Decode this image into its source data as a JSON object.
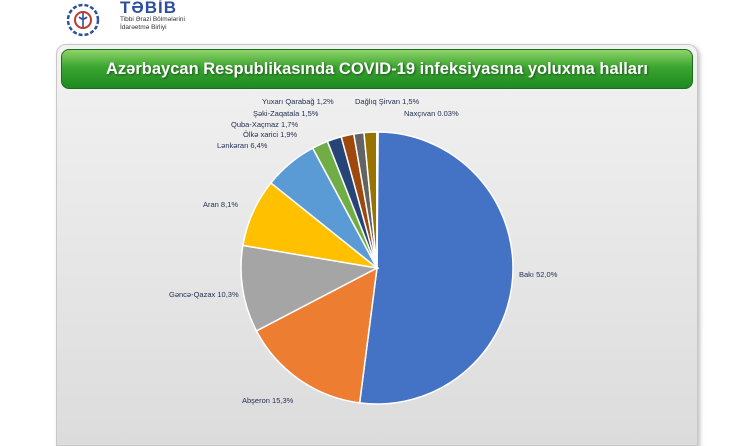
{
  "logo": {
    "title": "TƏBİB",
    "subtitle_line1": "Tibbi Ərazi Bölmələrini",
    "subtitle_line2": "İdarəetmə Birliyi"
  },
  "chart_data": {
    "type": "pie",
    "title": "Azərbaycan Respublikasında COVID-19 infeksiyasına yoluxma halları",
    "slices": [
      {
        "label": "Bakı 52,0%",
        "value": 52.0,
        "color": "#4472c4"
      },
      {
        "label": "Abşeron 15,3%",
        "value": 15.3,
        "color": "#ed7d31"
      },
      {
        "label": "Gəncə-Qazax 10,3%",
        "value": 10.3,
        "color": "#a5a5a5"
      },
      {
        "label": "Aran 8,1%",
        "value": 8.1,
        "color": "#ffc000"
      },
      {
        "label": "Lənkəran 6,4%",
        "value": 6.4,
        "color": "#5b9bd5"
      },
      {
        "label": "Ölkə xarici 1,9%",
        "value": 1.9,
        "color": "#70ad47"
      },
      {
        "label": "Quba-Xaçmaz 1,7%",
        "value": 1.7,
        "color": "#264478"
      },
      {
        "label": "Şəki-Zaqatala 1,5%",
        "value": 1.5,
        "color": "#9e480e"
      },
      {
        "label": "Yuxarı Qarabağ 1,2%",
        "value": 1.2,
        "color": "#636363"
      },
      {
        "label": "Dağlıq Şirvan 1,5%",
        "value": 1.5,
        "color": "#997300"
      },
      {
        "label": "Naxçıvan 0.03%",
        "value": 0.03,
        "color": "#2f5597"
      }
    ]
  }
}
